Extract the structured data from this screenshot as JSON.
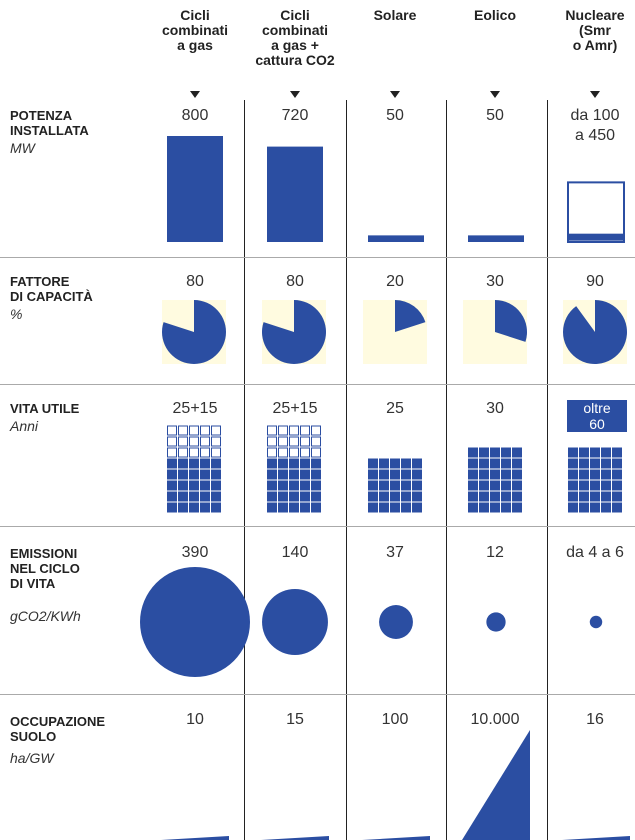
{
  "chart_data": [
    {
      "type": "bar",
      "categories": [
        "Cicli combinati a gas",
        "Cicli combinati a gas + cattura CO2",
        "Solare",
        "Eolico",
        "Nucleare (Smr o Amr)"
      ],
      "title": "POTENZA INSTALLATA",
      "unit": "MW",
      "value_labels": [
        "800",
        "720",
        "50",
        "50",
        "da 100 a 450"
      ],
      "values": [
        800,
        720,
        50,
        50,
        100
      ],
      "values_max": [
        800,
        720,
        50,
        50,
        450
      ]
    },
    {
      "type": "pie",
      "categories": [
        "Cicli combinati a gas",
        "Cicli combinati a gas + cattura CO2",
        "Solare",
        "Eolico",
        "Nucleare (Smr o Amr)"
      ],
      "title": "FATTORE DI CAPACITÀ",
      "unit": "%",
      "value_labels": [
        "80",
        "80",
        "20",
        "30",
        "90"
      ],
      "values": [
        80,
        80,
        20,
        30,
        90
      ]
    },
    {
      "type": "table",
      "categories": [
        "Cicli combinati a gas",
        "Cicli combinati a gas + cattura CO2",
        "Solare",
        "Eolico",
        "Nucleare (Smr o Amr)"
      ],
      "title": "VITA UTILE",
      "unit": "Anni",
      "value_labels": [
        "25+15",
        "25+15",
        "25",
        "30",
        "oltre 60"
      ],
      "values_filled": [
        25,
        25,
        25,
        30,
        60
      ],
      "values_extra": [
        15,
        15,
        0,
        0,
        0
      ]
    },
    {
      "type": "scatter",
      "categories": [
        "Cicli combinati a gas",
        "Cicli combinati a gas + cattura CO2",
        "Solare",
        "Eolico",
        "Nucleare (Smr o Amr)"
      ],
      "title": "EMISSIONI NEL CICLO DI VITA",
      "unit": "gCO2/KWh",
      "value_labels": [
        "390",
        "140",
        "37",
        "12",
        "da 4 a 6"
      ],
      "values": [
        390,
        140,
        37,
        12,
        5
      ]
    },
    {
      "type": "area",
      "categories": [
        "Cicli combinati a gas",
        "Cicli combinati a gas + cattura CO2",
        "Solare",
        "Eolico",
        "Nucleare (Smr o Amr)"
      ],
      "title": "OCCUPAZIONE SUOLO",
      "unit": "ha/GW",
      "value_labels": [
        "10",
        "15",
        "100",
        "10.000",
        "16"
      ],
      "values": [
        10,
        15,
        100,
        10000,
        16
      ]
    }
  ],
  "headers": [
    "Cicli\ncombinati\na gas",
    "Cicli\ncombinati\na gas +\ncattura CO2",
    "Solare",
    "Eolico",
    "Nucleare\n(Smr\no Amr)"
  ],
  "rows": [
    {
      "label": "POTENZA\nINSTALLATA",
      "unit": "MW",
      "values": [
        "800",
        "720",
        "50",
        "50",
        "da 100\na 450"
      ]
    },
    {
      "label": "FATTORE\nDI CAPACITÀ",
      "unit": "%",
      "values": [
        "80",
        "80",
        "20",
        "30",
        "90"
      ]
    },
    {
      "label": "VITA UTILE",
      "unit": "Anni",
      "values": [
        "25+15",
        "25+15",
        "25",
        "30",
        "oltre\n60"
      ]
    },
    {
      "label": "EMISSIONI\nNEL CICLO\nDI VITA",
      "unit": "gCO2/KWh",
      "values": [
        "390",
        "140",
        "37",
        "12",
        "da 4 a 6"
      ]
    },
    {
      "label": "OCCUPAZIONE\nSUOLO",
      "unit": "ha/GW",
      "values": [
        "10",
        "15",
        "100",
        "10.000",
        "16"
      ]
    }
  ],
  "colors": {
    "primary": "#2b4ea2",
    "pie_background": "#fffbe0",
    "outline": "#2b4ea2",
    "grid": "#aaaaaa"
  }
}
